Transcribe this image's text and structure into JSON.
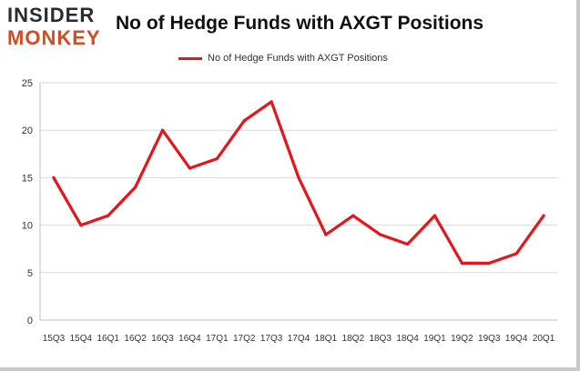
{
  "logo": {
    "line1": "INSIDER",
    "line2": "MONKEY"
  },
  "colors": {
    "series": "#e8141a",
    "grid": "#d9d9d9",
    "axis": "#bfbfbf",
    "logo_accent": "#d64a24"
  },
  "chart_data": {
    "type": "line",
    "title": "No of Hedge Funds with AXGT Positions",
    "xlabel": "",
    "ylabel": "",
    "categories": [
      "15Q3",
      "15Q4",
      "16Q1",
      "16Q2",
      "16Q3",
      "16Q4",
      "17Q1",
      "17Q2",
      "17Q3",
      "17Q4",
      "18Q1",
      "18Q2",
      "18Q3",
      "18Q4",
      "19Q1",
      "19Q2",
      "19Q3",
      "19Q4",
      "20Q1"
    ],
    "series": [
      {
        "name": "No of Hedge Funds with AXGT Positions",
        "values": [
          15,
          10,
          11,
          14,
          20,
          16,
          17,
          21,
          23,
          15,
          9,
          11,
          9,
          8,
          11,
          6,
          6,
          7,
          11
        ]
      }
    ],
    "ylim": [
      0,
      25
    ],
    "yticks": [
      0,
      5,
      10,
      15,
      20,
      25
    ],
    "grid": true,
    "legend_position": "top"
  }
}
